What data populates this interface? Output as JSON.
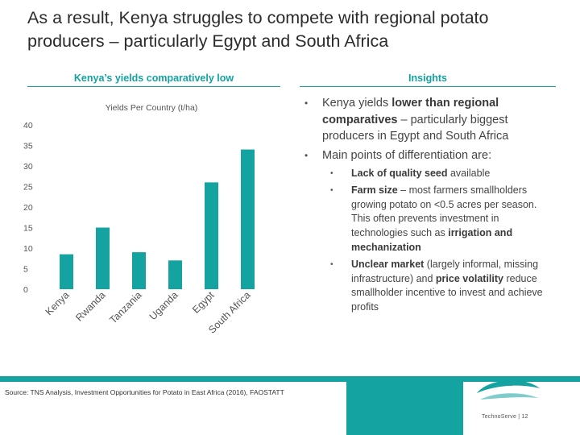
{
  "slide": {
    "title": "As a result, Kenya struggles to compete with regional potato producers – particularly Egypt and South Africa"
  },
  "left_panel": {
    "heading": "Kenya’s yields comparatively low"
  },
  "right_panel": {
    "heading": "Insights"
  },
  "chart_data": {
    "type": "bar",
    "title": "Yields Per Country (t/ha)",
    "categories": [
      "Kenya",
      "Rwanda",
      "Tanzania",
      "Uganda",
      "Egypt",
      "South Africa"
    ],
    "values": [
      8.5,
      15,
      9,
      7,
      26,
      34
    ],
    "ylim": [
      0,
      40
    ],
    "yticks": [
      0,
      5,
      10,
      15,
      20,
      25,
      30,
      35,
      40
    ],
    "xlabel": "",
    "ylabel": "",
    "grid": false,
    "bar_color": "#14a3a0"
  },
  "insights": {
    "b1": {
      "pre": "Kenya yields ",
      "bold": "lower than regional comparatives",
      "post": " – particularly biggest producers in Egypt and South Africa"
    },
    "b2": {
      "text": "Main points of differentiation are:"
    },
    "s1": {
      "bold": "Lack of quality seed",
      "post": " available"
    },
    "s2": {
      "bold": "Farm size",
      "mid": " – most farmers smallholders growing potato on <0.5 acres per season. This often prevents investment in technologies such as ",
      "bold2": "irrigation and mechanization"
    },
    "s3": {
      "bold": "Unclear market",
      "mid": " (largely informal, missing infrastructure) and ",
      "bold2": "price volatility",
      "post": " reduce smallholder incentive to invest and achieve profits"
    }
  },
  "footer": {
    "source": "Source: TNS Analysis, Investment Opportunities for Potato in East Africa (2016), FAOSTATT",
    "brand": "TechnoServe | 12"
  },
  "colors": {
    "accent": "#14a3a0",
    "text": "#333333"
  }
}
